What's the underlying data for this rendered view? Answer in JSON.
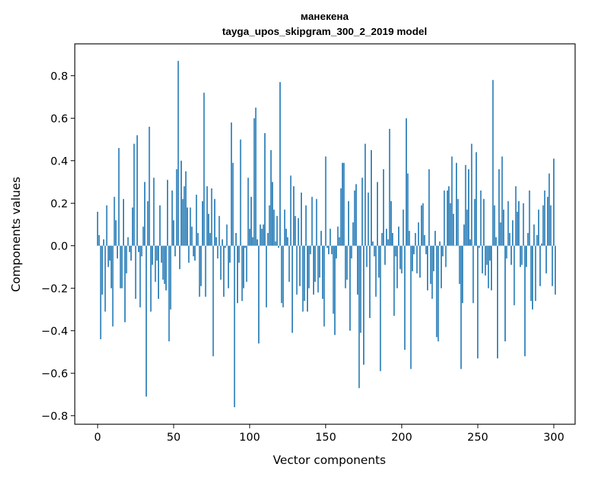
{
  "chart_data": {
    "type": "bar",
    "title_line1": "манекена",
    "title_line2": "tayga_upos_skipgram_300_2_2019 model",
    "xlabel": "Vector components",
    "ylabel": "Components values",
    "xlim": [
      -15,
      314
    ],
    "ylim": [
      -0.84,
      0.95
    ],
    "x_ticks": [
      0,
      50,
      100,
      150,
      200,
      250,
      300
    ],
    "x_tick_labels": [
      "0",
      "50",
      "100",
      "150",
      "200",
      "250",
      "300"
    ],
    "y_ticks": [
      -0.8,
      -0.6,
      -0.4,
      -0.2,
      0.0,
      0.2,
      0.4,
      0.6,
      0.8
    ],
    "y_tick_labels": [
      "−0.8",
      "−0.6",
      "−0.4",
      "−0.2",
      "0.0",
      "0.2",
      "0.4",
      "0.6",
      "0.8"
    ],
    "bar_color": "#1f77b4",
    "grid": false,
    "values": [
      0.16,
      0.05,
      -0.44,
      -0.23,
      0.03,
      -0.31,
      0.19,
      -0.1,
      -0.07,
      -0.2,
      -0.38,
      0.23,
      0.12,
      -0.06,
      0.46,
      -0.2,
      -0.2,
      0.22,
      -0.36,
      -0.13,
      0.04,
      -0.03,
      -0.07,
      0.18,
      0.48,
      -0.25,
      0.52,
      -0.03,
      -0.29,
      -0.05,
      0.09,
      0.3,
      -0.71,
      0.21,
      0.56,
      -0.31,
      -0.09,
      0.32,
      -0.17,
      -0.07,
      -0.25,
      0.19,
      -0.08,
      -0.16,
      -0.18,
      -0.21,
      0.31,
      -0.45,
      -0.3,
      0.26,
      0.12,
      -0.05,
      0.36,
      0.87,
      -0.11,
      0.4,
      0.22,
      0.28,
      0.35,
      0.18,
      -0.08,
      0.18,
      0.09,
      -0.05,
      -0.07,
      0.24,
      0.06,
      -0.24,
      -0.19,
      0.21,
      0.72,
      -0.24,
      0.28,
      0.15,
      0.06,
      0.27,
      -0.52,
      0.22,
      0.04,
      -0.06,
      0.14,
      -0.16,
      0.03,
      -0.24,
      -0.01,
      0.1,
      -0.2,
      -0.08,
      0.58,
      0.39,
      -0.76,
      0.06,
      -0.27,
      -0.08,
      0.5,
      -0.26,
      -0.2,
      -0.01,
      -0.17,
      0.32,
      0.08,
      0.23,
      0.04,
      0.6,
      0.65,
      0.03,
      -0.46,
      0.1,
      0.08,
      0.1,
      0.53,
      -0.29,
      0.06,
      0.19,
      0.45,
      0.3,
      0.17,
      0.02,
      0.14,
      -0.01,
      0.77,
      -0.27,
      -0.29,
      0.17,
      0.08,
      0.04,
      -0.17,
      0.33,
      -0.41,
      0.28,
      0.14,
      -0.23,
      0.13,
      -0.19,
      0.25,
      -0.31,
      -0.26,
      0.19,
      -0.31,
      -0.2,
      -0.04,
      0.23,
      -0.23,
      -0.17,
      0.22,
      -0.22,
      -0.15,
      0.07,
      -0.25,
      -0.38,
      0.42,
      -0.01,
      -0.04,
      0.08,
      -0.04,
      -0.32,
      -0.42,
      -0.06,
      0.09,
      0.04,
      0.27,
      0.39,
      0.39,
      -0.2,
      -0.16,
      0.21,
      -0.4,
      -0.06,
      0.11,
      0.26,
      0.29,
      -0.23,
      -0.67,
      -0.41,
      0.32,
      -0.56,
      0.48,
      -0.1,
      0.25,
      -0.34,
      0.45,
      0.02,
      -0.05,
      -0.24,
      0.3,
      -0.15,
      -0.59,
      0.06,
      0.36,
      -0.09,
      0.08,
      0.03,
      0.55,
      0.21,
      0.06,
      -0.33,
      -0.05,
      -0.2,
      0.09,
      -0.11,
      -0.13,
      0.17,
      -0.49,
      0.6,
      0.34,
      0.07,
      -0.58,
      -0.12,
      -0.04,
      0.06,
      -0.13,
      0.11,
      -0.15,
      0.19,
      0.2,
      0.05,
      -0.04,
      -0.21,
      0.36,
      -0.18,
      -0.25,
      -0.12,
      0.07,
      -0.43,
      -0.45,
      0.02,
      -0.2,
      -0.05,
      0.26,
      -0.1,
      0.26,
      0.28,
      0.2,
      0.42,
      0.15,
      0.0,
      0.39,
      0.22,
      -0.18,
      -0.58,
      -0.27,
      0.1,
      0.38,
      0.17,
      0.36,
      0.03,
      0.48,
      -0.27,
      0.22,
      0.44,
      -0.53,
      -0.01,
      0.26,
      -0.13,
      0.22,
      -0.14,
      -0.09,
      -0.2,
      -0.07,
      -0.21,
      0.78,
      0.19,
      0.04,
      -0.53,
      0.36,
      0.11,
      0.42,
      0.17,
      -0.45,
      -0.06,
      0.21,
      0.06,
      -0.09,
      0.12,
      -0.28,
      0.28,
      0.16,
      0.21,
      -0.1,
      -0.09,
      0.2,
      -0.52,
      -0.1,
      0.06,
      0.26,
      -0.26,
      -0.3,
      0.1,
      -0.26,
      0.05,
      0.17,
      -0.19,
      0.01,
      0.19,
      0.26,
      -0.13,
      0.23,
      0.34,
      0.19,
      -0.19,
      0.41,
      -0.23
    ]
  }
}
